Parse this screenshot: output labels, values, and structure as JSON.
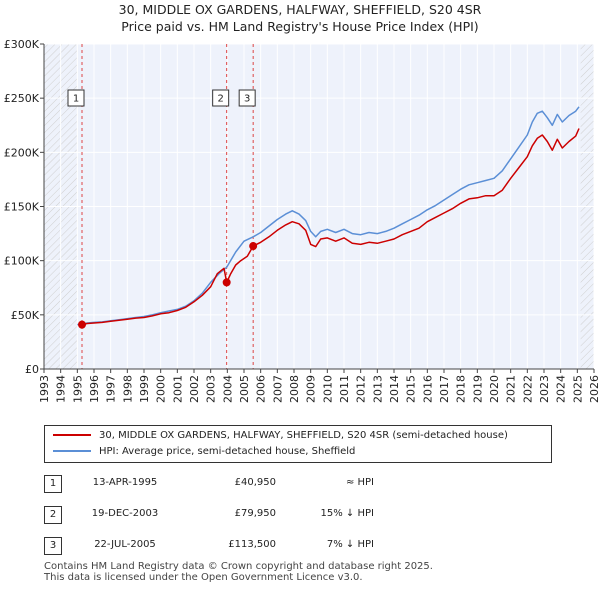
{
  "title_line1": "30, MIDDLE OX GARDENS, HALFWAY, SHEFFIELD, S20 4SR",
  "title_line2": "Price paid vs. HM Land Registry's House Price Index (HPI)",
  "chart_data": {
    "type": "line",
    "xlim": [
      1993,
      2026
    ],
    "ylim": [
      0,
      300000
    ],
    "y_ticks": [
      0,
      50000,
      100000,
      150000,
      200000,
      250000,
      300000
    ],
    "y_tick_labels": [
      "£0",
      "£50K",
      "£100K",
      "£150K",
      "£200K",
      "£250K",
      "£300K"
    ],
    "x_ticks": [
      1993,
      1994,
      1995,
      1996,
      1997,
      1998,
      1999,
      2000,
      2001,
      2002,
      2003,
      2004,
      2005,
      2006,
      2007,
      2008,
      2009,
      2010,
      2011,
      2012,
      2013,
      2014,
      2015,
      2016,
      2017,
      2018,
      2019,
      2020,
      2021,
      2022,
      2023,
      2024,
      2025,
      2026
    ],
    "x_tick_labels": [
      "1993",
      "1994",
      "1995",
      "1996",
      "1997",
      "1998",
      "1999",
      "2000",
      "2001",
      "2002",
      "2003",
      "2004",
      "2005",
      "2006",
      "2007",
      "2008",
      "2009",
      "2010",
      "2011",
      "2012",
      "2013",
      "2014",
      "2015",
      "2016",
      "2017",
      "2018",
      "2019",
      "2020",
      "2021",
      "2022",
      "2023",
      "2024",
      "2025",
      "2026"
    ],
    "hatched_before": 1995.0,
    "hatched_after": 2025.2,
    "series": [
      {
        "name": "30, MIDDLE OX GARDENS, HALFWAY, SHEFFIELD, S20 4SR (semi-detached house)",
        "color": "#cc0000",
        "x": [
          1995.28,
          1995.6,
          1996,
          1996.5,
          1997,
          1997.5,
          1998,
          1998.5,
          1999,
          1999.5,
          2000,
          2000.5,
          2001,
          2001.5,
          2002,
          2002.5,
          2003,
          2003.4,
          2003.8,
          2003.96,
          2004.2,
          2004.5,
          2004.8,
          2005.2,
          2005.55,
          2006,
          2006.5,
          2007,
          2007.5,
          2007.9,
          2008.3,
          2008.7,
          2009,
          2009.3,
          2009.6,
          2010,
          2010.5,
          2011,
          2011.5,
          2012,
          2012.5,
          2013,
          2013.5,
          2014,
          2014.5,
          2015,
          2015.5,
          2016,
          2016.5,
          2017,
          2017.5,
          2018,
          2018.5,
          2019,
          2019.5,
          2020,
          2020.5,
          2021,
          2021.5,
          2022,
          2022.3,
          2022.6,
          2022.9,
          2023.2,
          2023.5,
          2023.8,
          2024.1,
          2024.5,
          2024.9,
          2025.1
        ],
        "values": [
          40950,
          42000,
          42500,
          43000,
          44000,
          45000,
          46000,
          47000,
          47500,
          49000,
          51000,
          52000,
          54000,
          57000,
          62000,
          68000,
          76000,
          88000,
          93000,
          79950,
          88000,
          96000,
          100000,
          104000,
          113500,
          117000,
          122000,
          128000,
          133000,
          136000,
          134000,
          128000,
          115000,
          113000,
          120000,
          121000,
          118000,
          121000,
          116000,
          115000,
          117000,
          116000,
          118000,
          120000,
          124000,
          127000,
          130000,
          136000,
          140000,
          144000,
          148000,
          153000,
          157000,
          158000,
          160000,
          160000,
          165000,
          176000,
          186000,
          196000,
          206000,
          213000,
          216000,
          210000,
          202000,
          212000,
          204000,
          210000,
          215000,
          222000
        ]
      },
      {
        "name": "HPI: Average price, semi-detached house, Sheffield",
        "color": "#5b8fd6",
        "x": [
          1995.0,
          1995.3,
          1995.6,
          1996,
          1996.5,
          1997,
          1997.5,
          1998,
          1998.5,
          1999,
          1999.5,
          2000,
          2000.5,
          2001,
          2001.5,
          2002,
          2002.5,
          2003,
          2003.5,
          2003.96,
          2004.5,
          2005,
          2005.55,
          2006,
          2006.5,
          2007,
          2007.5,
          2007.9,
          2008.3,
          2008.7,
          2009,
          2009.3,
          2009.6,
          2010,
          2010.5,
          2011,
          2011.5,
          2012,
          2012.5,
          2013,
          2013.5,
          2014,
          2014.5,
          2015,
          2015.5,
          2016,
          2016.5,
          2017,
          2017.5,
          2018,
          2018.5,
          2019,
          2019.5,
          2020,
          2020.5,
          2021,
          2021.5,
          2022,
          2022.3,
          2022.6,
          2022.9,
          2023.2,
          2023.5,
          2023.8,
          2024.1,
          2024.5,
          2024.9,
          2025.1
        ],
        "values": [
          41000,
          41500,
          42500,
          43000,
          43500,
          44500,
          45500,
          46500,
          47500,
          48500,
          50000,
          52000,
          53500,
          55000,
          58000,
          63000,
          70000,
          80000,
          88000,
          94000,
          108000,
          118000,
          122000,
          126000,
          132000,
          138000,
          143000,
          146000,
          143000,
          137000,
          127000,
          122000,
          127000,
          129000,
          126000,
          129000,
          125000,
          124000,
          126000,
          125000,
          127000,
          130000,
          134000,
          138000,
          142000,
          147000,
          151000,
          156000,
          161000,
          166000,
          170000,
          172000,
          174000,
          176000,
          183000,
          194000,
          205000,
          216000,
          228000,
          236000,
          238000,
          232000,
          225000,
          235000,
          228000,
          234000,
          238000,
          242000
        ]
      }
    ],
    "sales": [
      {
        "label": "1",
        "x": 1995.28,
        "y": 40950
      },
      {
        "label": "2",
        "x": 2003.96,
        "y": 79950
      },
      {
        "label": "3",
        "x": 2005.55,
        "y": 113500
      }
    ],
    "legend_position": "below"
  },
  "legend": {
    "price_paid": "30, MIDDLE OX GARDENS, HALFWAY, SHEFFIELD, S20 4SR (semi-detached house)",
    "hpi": "HPI: Average price, semi-detached house, Sheffield"
  },
  "transactions": [
    {
      "num": "1",
      "date": "13-APR-1995",
      "price": "£40,950",
      "relation": "≈ HPI"
    },
    {
      "num": "2",
      "date": "19-DEC-2003",
      "price": "£79,950",
      "relation": "15% ↓ HPI"
    },
    {
      "num": "3",
      "date": "22-JUL-2005",
      "price": "£113,500",
      "relation": "7% ↓ HPI"
    }
  ],
  "footer_line1": "Contains HM Land Registry data © Crown copyright and database right 2025.",
  "footer_line2": "This data is licensed under the Open Government Licence v3.0."
}
